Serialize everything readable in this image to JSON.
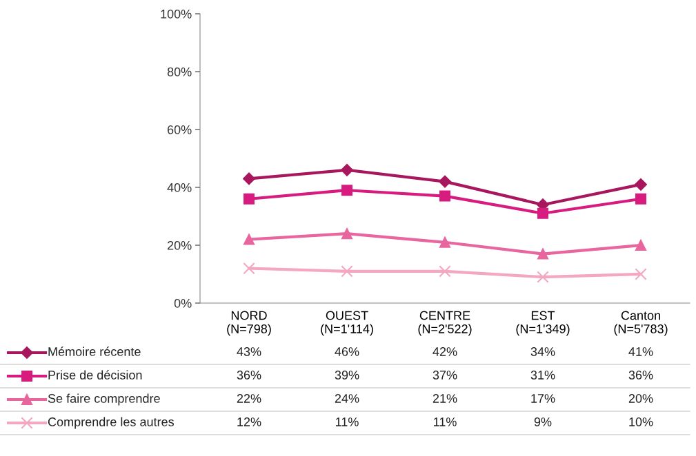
{
  "chart_data": {
    "type": "line",
    "categories": [
      "NORD\n(N=798)",
      "OUEST\n(N=1'114)",
      "CENTRE\n(N=2'522)",
      "EST\n(N=1'349)",
      "Canton\n(N=5'783)"
    ],
    "ylim": [
      0,
      100
    ],
    "yticks": [
      {
        "value": 0,
        "label": "0%"
      },
      {
        "value": 20,
        "label": "20%"
      },
      {
        "value": 40,
        "label": "40%"
      },
      {
        "value": 60,
        "label": "60%"
      },
      {
        "value": 80,
        "label": "80%"
      },
      {
        "value": 100,
        "label": "100%"
      }
    ],
    "grid": false,
    "legend": "bottom",
    "series": [
      {
        "name": "Mémoire récente",
        "color": "#a8175e",
        "marker": "diamond",
        "values": [
          43,
          46,
          42,
          34,
          41
        ],
        "value_labels": [
          "43%",
          "46%",
          "42%",
          "34%",
          "41%"
        ]
      },
      {
        "name": "Prise de décision",
        "color": "#d81b7f",
        "marker": "square",
        "values": [
          36,
          39,
          37,
          31,
          36
        ],
        "value_labels": [
          "36%",
          "39%",
          "37%",
          "31%",
          "36%"
        ]
      },
      {
        "name": "Se faire comprendre",
        "color": "#e8659d",
        "marker": "triangle",
        "values": [
          22,
          24,
          21,
          17,
          20
        ],
        "value_labels": [
          "22%",
          "24%",
          "21%",
          "17%",
          "20%"
        ]
      },
      {
        "name": "Comprendre les autres",
        "color": "#f3a7c1",
        "marker": "cross",
        "values": [
          12,
          11,
          11,
          9,
          10
        ],
        "value_labels": [
          "12%",
          "11%",
          "11%",
          "9%",
          "10%"
        ]
      }
    ]
  }
}
